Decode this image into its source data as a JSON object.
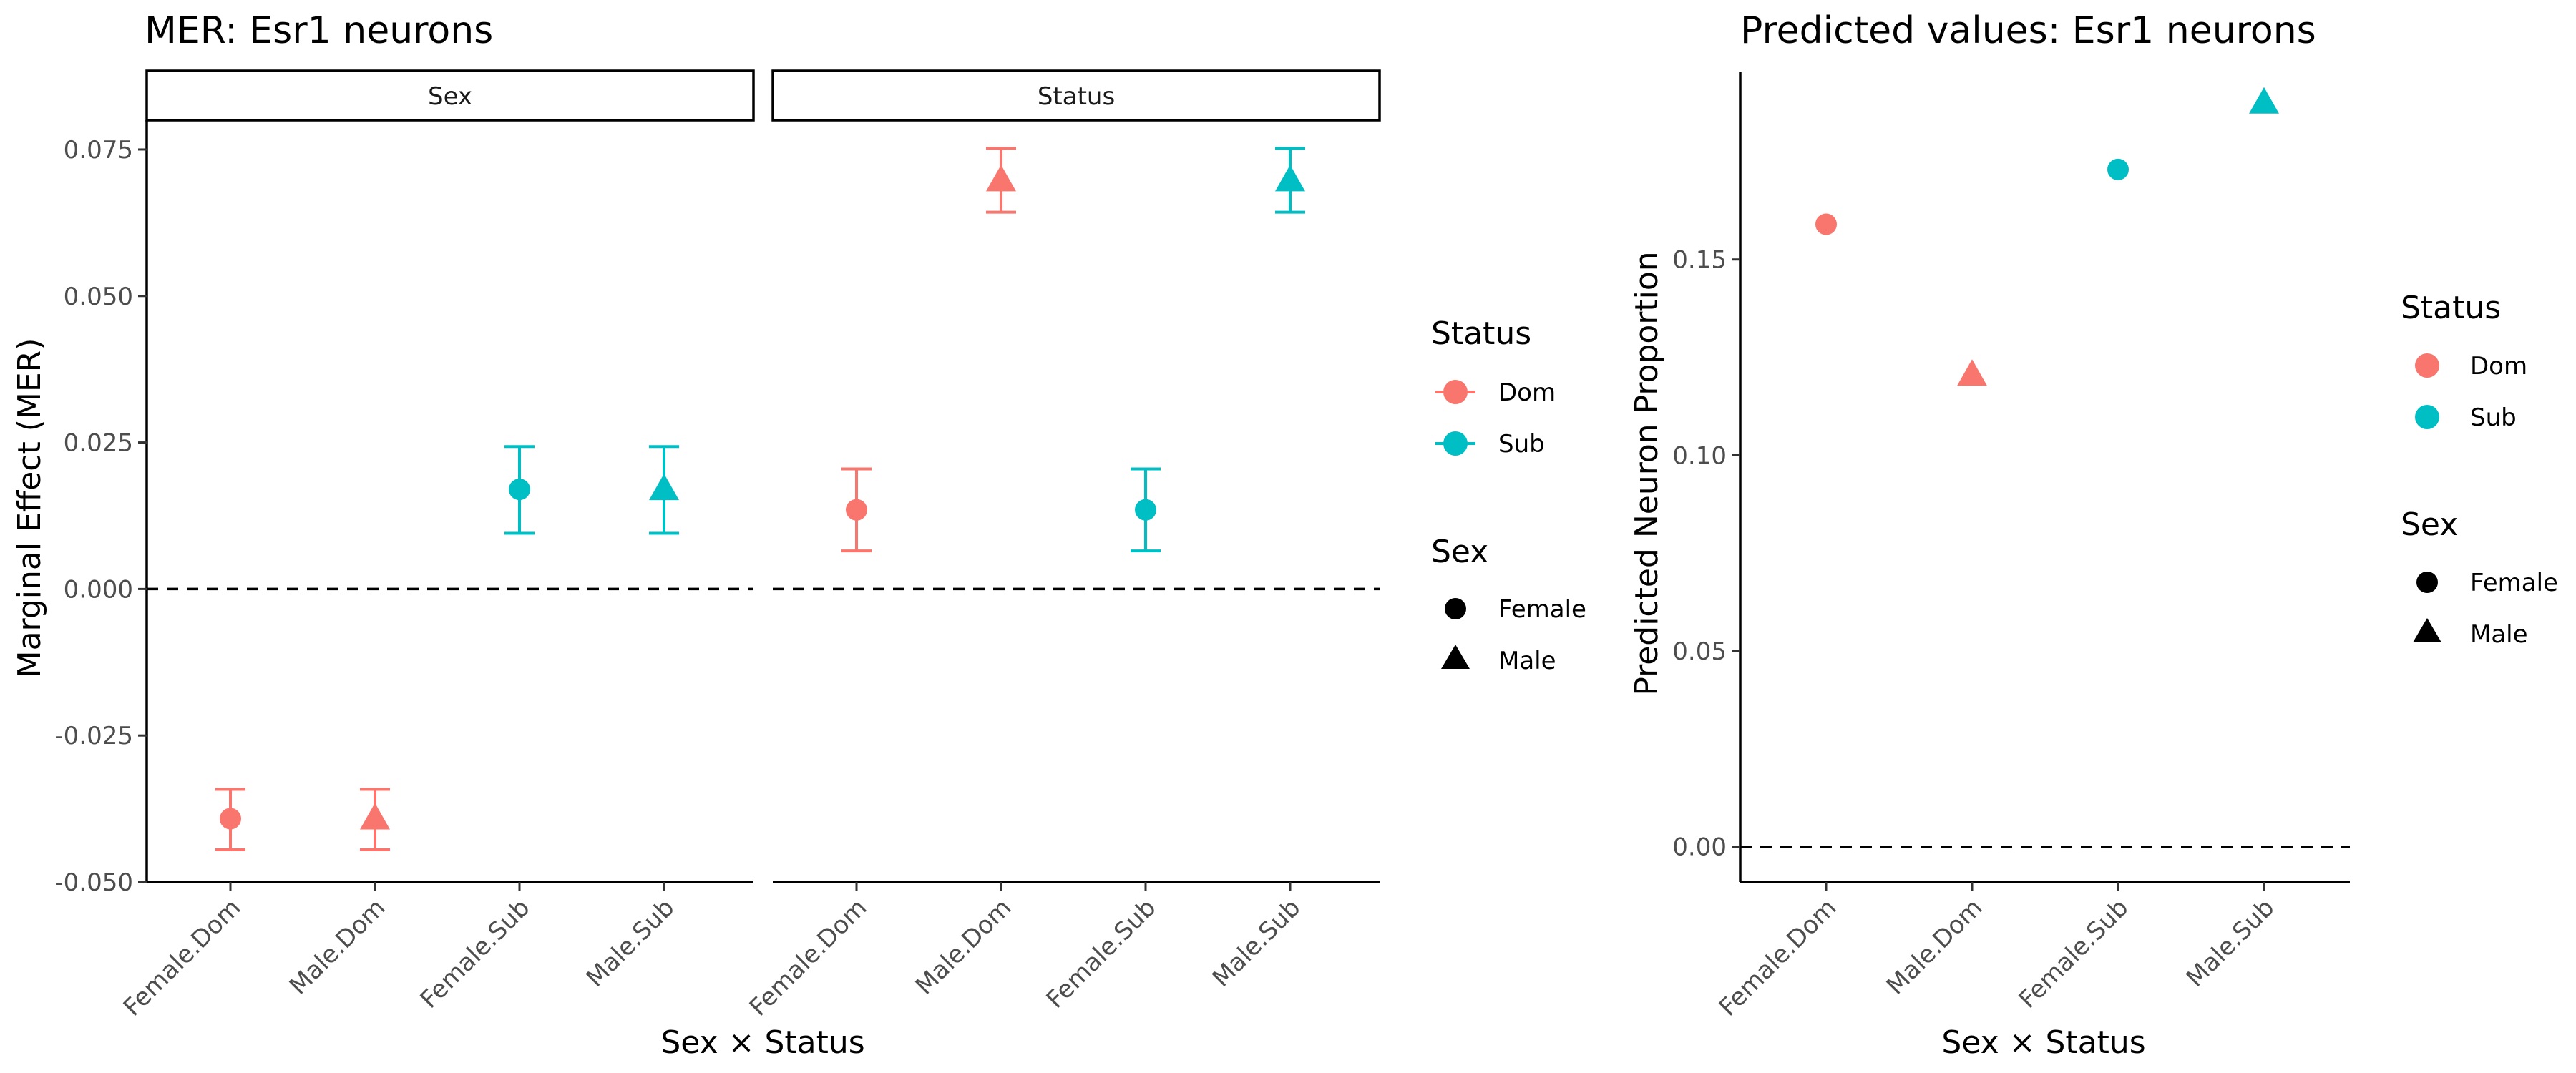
{
  "colors": {
    "dom": "#F8766D",
    "sub": "#00BFC4",
    "axis": "#000000",
    "tick_label": "#4D4D4D"
  },
  "chart_data": [
    {
      "type": "scatter",
      "title": "MER: Esr1 neurons",
      "xlabel": "Sex × Status",
      "ylabel": "Marginal Effect (MER)",
      "ylim": [
        -0.05,
        0.08
      ],
      "yticks": [
        "-0.050",
        "-0.025",
        "0.000",
        "0.025",
        "0.050",
        "0.075"
      ],
      "categories": [
        "Female.Dom",
        "Male.Dom",
        "Female.Sub",
        "Male.Sub"
      ],
      "reference_line": 0,
      "facets": [
        {
          "label": "Sex",
          "points": [
            {
              "category": "Female.Dom",
              "status": "Dom",
              "sex": "Female",
              "y": -0.0392,
              "ymin": -0.0445,
              "ymax": -0.0342
            },
            {
              "category": "Male.Dom",
              "status": "Dom",
              "sex": "Male",
              "y": -0.0392,
              "ymin": -0.0445,
              "ymax": -0.0342
            },
            {
              "category": "Female.Sub",
              "status": "Sub",
              "sex": "Female",
              "y": 0.017,
              "ymin": 0.0095,
              "ymax": 0.0243
            },
            {
              "category": "Male.Sub",
              "status": "Sub",
              "sex": "Male",
              "y": 0.017,
              "ymin": 0.0095,
              "ymax": 0.0243
            }
          ]
        },
        {
          "label": "Status",
          "points": [
            {
              "category": "Female.Dom",
              "status": "Dom",
              "sex": "Female",
              "y": 0.0135,
              "ymin": 0.0065,
              "ymax": 0.0205
            },
            {
              "category": "Male.Dom",
              "status": "Dom",
              "sex": "Male",
              "y": 0.0697,
              "ymin": 0.0643,
              "ymax": 0.0752
            },
            {
              "category": "Female.Sub",
              "status": "Sub",
              "sex": "Female",
              "y": 0.0135,
              "ymin": 0.0065,
              "ymax": 0.0205
            },
            {
              "category": "Male.Sub",
              "status": "Sub",
              "sex": "Male",
              "y": 0.0697,
              "ymin": 0.0643,
              "ymax": 0.0752
            }
          ]
        }
      ],
      "legend": {
        "placement": "right",
        "status_title": "Status",
        "status_items": [
          "Dom",
          "Sub"
        ],
        "sex_title": "Sex",
        "sex_items": [
          "Female",
          "Male"
        ]
      }
    },
    {
      "type": "scatter",
      "title": "Predicted values: Esr1 neurons",
      "xlabel": "Sex × Status",
      "ylabel": "Predicted Neuron Proportion",
      "ylim": [
        -0.009,
        0.198
      ],
      "yticks": [
        "0.00",
        "0.05",
        "0.10",
        "0.15"
      ],
      "categories": [
        "Female.Dom",
        "Male.Dom",
        "Female.Sub",
        "Male.Sub"
      ],
      "reference_line": 0,
      "points": [
        {
          "category": "Female.Dom",
          "status": "Dom",
          "sex": "Female",
          "y": 0.159
        },
        {
          "category": "Male.Dom",
          "status": "Dom",
          "sex": "Male",
          "y": 0.1205
        },
        {
          "category": "Female.Sub",
          "status": "Sub",
          "sex": "Female",
          "y": 0.173
        },
        {
          "category": "Male.Sub",
          "status": "Sub",
          "sex": "Male",
          "y": 0.19
        }
      ],
      "legend": {
        "placement": "right",
        "status_title": "Status",
        "status_items": [
          "Dom",
          "Sub"
        ],
        "sex_title": "Sex",
        "sex_items": [
          "Female",
          "Male"
        ]
      }
    }
  ]
}
